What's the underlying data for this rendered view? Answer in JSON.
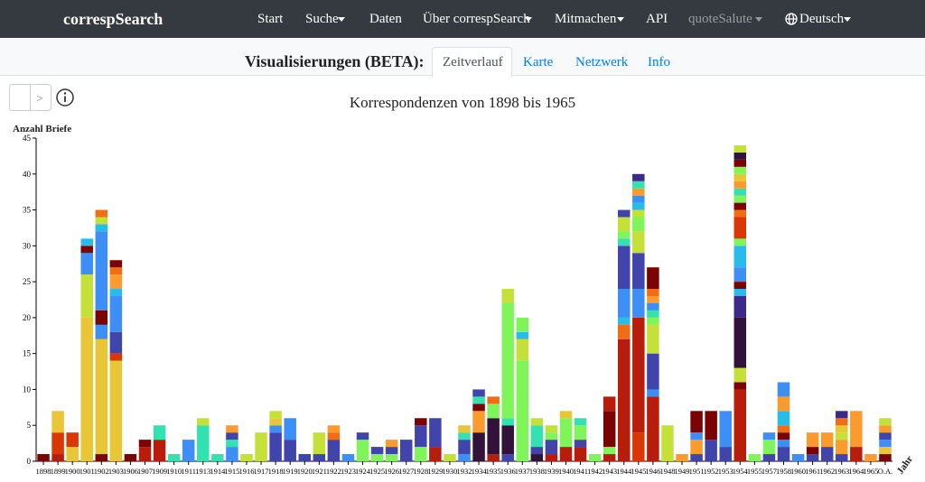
{
  "navbar": {
    "brand": "correspSearch",
    "items": [
      "Start",
      "Suche",
      "Daten",
      "Über correspSearch",
      "Mitmachen",
      "API",
      "quoteSalute",
      "Deutsch"
    ]
  },
  "subnav": {
    "heading": "Visualisierungen (BETA):",
    "tabs": [
      "Zeitverlauf",
      "Karte",
      "Netzwerk",
      "Info"
    ]
  },
  "controls": {
    "next": ">"
  },
  "chart_data": {
    "type": "stacked-bar",
    "title": "Korrespondenzen von 1898 bis 1965",
    "y_label": "Anzahl Briefe",
    "x_label": "Jahr",
    "ylim": [
      0,
      45
    ],
    "yticks": [
      0,
      5,
      10,
      15,
      20,
      25,
      30,
      35,
      40,
      45
    ],
    "categories": [
      "1898",
      "1899",
      "1900",
      "1901",
      "1902",
      "1903",
      "1906",
      "1907",
      "1909",
      "1910",
      "1911",
      "1913",
      "1914",
      "1915",
      "1916",
      "1917",
      "1918",
      "1919",
      "1920",
      "1921",
      "1922",
      "1923",
      "1924",
      "1925",
      "1926",
      "1927",
      "1928",
      "1929",
      "1930",
      "1932",
      "1934",
      "1935",
      "1936",
      "1937",
      "1938",
      "1939",
      "1940",
      "1941",
      "1942",
      "1943",
      "1944",
      "1945",
      "1946",
      "1948",
      "1949",
      "1951",
      "1952",
      "1953",
      "1954",
      "1955",
      "1957",
      "1958",
      "1960",
      "1961",
      "1962",
      "1963",
      "1964",
      "1965",
      "O.A."
    ],
    "stacks": [
      [
        {
          "value": 1,
          "color": "#7a0403"
        }
      ],
      [
        {
          "value": 1,
          "color": "#b81d0c"
        },
        {
          "value": 3,
          "color": "#d93806"
        },
        {
          "value": 3,
          "color": "#e8c635"
        }
      ],
      [
        {
          "value": 2,
          "color": "#e8c635"
        },
        {
          "value": 2,
          "color": "#d93806"
        }
      ],
      [
        {
          "value": 20,
          "color": "#e8c635"
        },
        {
          "value": 6,
          "color": "#c6e03a"
        },
        {
          "value": 3,
          "color": "#3e8ff5"
        },
        {
          "value": 1,
          "color": "#7a0403"
        },
        {
          "value": 1,
          "color": "#28bceb"
        }
      ],
      [
        {
          "value": 1,
          "color": "#7a0403"
        },
        {
          "value": 16,
          "color": "#e8c635"
        },
        {
          "value": 2,
          "color": "#3e8ff5"
        },
        {
          "value": 2,
          "color": "#7a0403"
        },
        {
          "value": 11,
          "color": "#3e8ff5"
        },
        {
          "value": 1,
          "color": "#28bceb"
        },
        {
          "value": 1,
          "color": "#c6e03a"
        },
        {
          "value": 1,
          "color": "#f26b15"
        }
      ],
      [
        {
          "value": 14,
          "color": "#e8c635"
        },
        {
          "value": 1,
          "color": "#d93806"
        },
        {
          "value": 3,
          "color": "#4145ab"
        },
        {
          "value": 5,
          "color": "#3e8ff5"
        },
        {
          "value": 1,
          "color": "#28bceb"
        },
        {
          "value": 2,
          "color": "#fb9b2e"
        },
        {
          "value": 1,
          "color": "#f26b15"
        },
        {
          "value": 1,
          "color": "#7a0403"
        }
      ],
      [
        {
          "value": 1,
          "color": "#7a0403"
        }
      ],
      [
        {
          "value": 2,
          "color": "#b81d0c"
        },
        {
          "value": 1,
          "color": "#7a0403"
        }
      ],
      [
        {
          "value": 3,
          "color": "#b81d0c"
        },
        {
          "value": 2,
          "color": "#35e1b0"
        }
      ],
      [
        {
          "value": 1,
          "color": "#35e1b0"
        }
      ],
      [
        {
          "value": 3,
          "color": "#3e8ff5"
        }
      ],
      [
        {
          "value": 5,
          "color": "#35e1b0"
        },
        {
          "value": 1,
          "color": "#c6e03a"
        }
      ],
      [
        {
          "value": 1,
          "color": "#35e1b0"
        }
      ],
      [
        {
          "value": 2,
          "color": "#3e8ff5"
        },
        {
          "value": 1,
          "color": "#35e1b0"
        },
        {
          "value": 1,
          "color": "#4145ab"
        },
        {
          "value": 1,
          "color": "#fb9b2e"
        }
      ],
      [
        {
          "value": 1,
          "color": "#c6e03a"
        }
      ],
      [
        {
          "value": 4,
          "color": "#c6e03a"
        }
      ],
      [
        {
          "value": 4,
          "color": "#4145ab"
        },
        {
          "value": 1,
          "color": "#3e8ff5"
        },
        {
          "value": 1,
          "color": "#e8c635"
        },
        {
          "value": 1,
          "color": "#c6e03a"
        }
      ],
      [
        {
          "value": 3,
          "color": "#4145ab"
        },
        {
          "value": 3,
          "color": "#3e8ff5"
        }
      ],
      [
        {
          "value": 1,
          "color": "#4145ab"
        }
      ],
      [
        {
          "value": 1,
          "color": "#4145ab"
        },
        {
          "value": 3,
          "color": "#c6e03a"
        }
      ],
      [
        {
          "value": 3,
          "color": "#4145ab"
        },
        {
          "value": 1,
          "color": "#f26b15"
        },
        {
          "value": 1,
          "color": "#fb9b2e"
        }
      ],
      [
        {
          "value": 1,
          "color": "#3e8ff5"
        }
      ],
      [
        {
          "value": 3,
          "color": "#80f55a"
        },
        {
          "value": 1,
          "color": "#4145ab"
        }
      ],
      [
        {
          "value": 1,
          "color": "#80f55a"
        },
        {
          "value": 1,
          "color": "#4145ab"
        }
      ],
      [
        {
          "value": 1,
          "color": "#80f55a"
        },
        {
          "value": 1,
          "color": "#4145ab"
        },
        {
          "value": 1,
          "color": "#fb9b2e"
        }
      ],
      [
        {
          "value": 3,
          "color": "#4145ab"
        }
      ],
      [
        {
          "value": 2,
          "color": "#80f55a"
        },
        {
          "value": 3,
          "color": "#4145ab"
        },
        {
          "value": 1,
          "color": "#7a0403"
        }
      ],
      [
        {
          "value": 2,
          "color": "#b81d0c"
        },
        {
          "value": 4,
          "color": "#4145ab"
        }
      ],
      [
        {
          "value": 1,
          "color": "#c6e03a"
        }
      ],
      [
        {
          "value": 1,
          "color": "#3e8ff5"
        },
        {
          "value": 2,
          "color": "#4145ab"
        },
        {
          "value": 1,
          "color": "#35e1b0"
        },
        {
          "value": 1,
          "color": "#e8c635"
        }
      ],
      [
        {
          "value": 4,
          "color": "#30123b"
        },
        {
          "value": 3,
          "color": "#fb9b2e"
        },
        {
          "value": 1,
          "color": "#7a0403"
        },
        {
          "value": 1,
          "color": "#35e1b0"
        },
        {
          "value": 1,
          "color": "#4145ab"
        }
      ],
      [
        {
          "value": 1,
          "color": "#b81d0c"
        },
        {
          "value": 5,
          "color": "#30123b"
        },
        {
          "value": 2,
          "color": "#80f55a"
        },
        {
          "value": 1,
          "color": "#f26b15"
        }
      ],
      [
        {
          "value": 1,
          "color": "#4145ab"
        },
        {
          "value": 4,
          "color": "#30123b"
        },
        {
          "value": 1,
          "color": "#35e1b0"
        },
        {
          "value": 16,
          "color": "#80f55a"
        },
        {
          "value": 2,
          "color": "#c6e03a"
        }
      ],
      [
        {
          "value": 14,
          "color": "#80f55a"
        },
        {
          "value": 3,
          "color": "#c6e03a"
        },
        {
          "value": 1,
          "color": "#28bceb"
        },
        {
          "value": 2,
          "color": "#80f55a"
        }
      ],
      [
        {
          "value": 1,
          "color": "#30123b"
        },
        {
          "value": 1,
          "color": "#4145ab"
        },
        {
          "value": 3,
          "color": "#35e1b0"
        },
        {
          "value": 1,
          "color": "#c6e03a"
        }
      ],
      [
        {
          "value": 1,
          "color": "#b81d0c"
        },
        {
          "value": 2,
          "color": "#4145ab"
        },
        {
          "value": 1,
          "color": "#80f55a"
        },
        {
          "value": 1,
          "color": "#c6e03a"
        }
      ],
      [
        {
          "value": 2,
          "color": "#b81d0c"
        },
        {
          "value": 4,
          "color": "#80f55a"
        },
        {
          "value": 1,
          "color": "#e8c635"
        }
      ],
      [
        {
          "value": 2,
          "color": "#b81d0c"
        },
        {
          "value": 1,
          "color": "#4145ab"
        },
        {
          "value": 2,
          "color": "#80f55a"
        },
        {
          "value": 1,
          "color": "#35e1b0"
        }
      ],
      [
        {
          "value": 1,
          "color": "#80f55a"
        }
      ],
      [
        {
          "value": 1,
          "color": "#b81d0c"
        },
        {
          "value": 1,
          "color": "#80f55a"
        },
        {
          "value": 5,
          "color": "#7a0403"
        },
        {
          "value": 2,
          "color": "#b81d0c"
        }
      ],
      [
        {
          "value": 17,
          "color": "#b81d0c"
        },
        {
          "value": 2,
          "color": "#f26b15"
        },
        {
          "value": 1,
          "color": "#28bceb"
        },
        {
          "value": 4,
          "color": "#3e8ff5"
        },
        {
          "value": 6,
          "color": "#4145ab"
        },
        {
          "value": 1,
          "color": "#35e1b0"
        },
        {
          "value": 1,
          "color": "#80f55a"
        },
        {
          "value": 2,
          "color": "#c6e03a"
        },
        {
          "value": 1,
          "color": "#4145ab"
        }
      ],
      [
        {
          "value": 4,
          "color": "#d93806"
        },
        {
          "value": 16,
          "color": "#b81d0c"
        },
        {
          "value": 4,
          "color": "#3e8ff5"
        },
        {
          "value": 5,
          "color": "#4145ab"
        },
        {
          "value": 3,
          "color": "#c6e03a"
        },
        {
          "value": 2,
          "color": "#80f55a"
        },
        {
          "value": 1,
          "color": "#c6e03a"
        },
        {
          "value": 1,
          "color": "#28bceb"
        },
        {
          "value": 1,
          "color": "#3e8ff5"
        },
        {
          "value": 1,
          "color": "#fb9b2e"
        },
        {
          "value": 1,
          "color": "#35e1b0"
        },
        {
          "value": 1,
          "color": "#3b2a8a"
        }
      ],
      [
        {
          "value": 9,
          "color": "#b81d0c"
        },
        {
          "value": 1,
          "color": "#3e8ff5"
        },
        {
          "value": 5,
          "color": "#4145ab"
        },
        {
          "value": 4,
          "color": "#c6e03a"
        },
        {
          "value": 1,
          "color": "#80f55a"
        },
        {
          "value": 1,
          "color": "#35e1b0"
        },
        {
          "value": 1,
          "color": "#3e8ff5"
        },
        {
          "value": 1,
          "color": "#fb9b2e"
        },
        {
          "value": 1,
          "color": "#f26b15"
        },
        {
          "value": 3,
          "color": "#7a0403"
        }
      ],
      [
        {
          "value": 5,
          "color": "#c6e03a"
        }
      ],
      [
        {
          "value": 1,
          "color": "#fb9b2e"
        }
      ],
      [
        {
          "value": 1,
          "color": "#4145ab"
        },
        {
          "value": 2,
          "color": "#fb9b2e"
        },
        {
          "value": 1,
          "color": "#3e8ff5"
        },
        {
          "value": 3,
          "color": "#7a0403"
        }
      ],
      [
        {
          "value": 3,
          "color": "#4145ab"
        },
        {
          "value": 4,
          "color": "#7a0403"
        }
      ],
      [
        {
          "value": 2,
          "color": "#4145ab"
        },
        {
          "value": 5,
          "color": "#3e8ff5"
        }
      ],
      [
        {
          "value": 10,
          "color": "#b81d0c"
        },
        {
          "value": 1,
          "color": "#7a0403"
        },
        {
          "value": 2,
          "color": "#c6e03a"
        },
        {
          "value": 7,
          "color": "#30123b"
        },
        {
          "value": 3,
          "color": "#3b2a8a"
        },
        {
          "value": 1,
          "color": "#28bceb"
        },
        {
          "value": 1,
          "color": "#7a0403"
        },
        {
          "value": 2,
          "color": "#3e8ff5"
        },
        {
          "value": 3,
          "color": "#28bceb"
        },
        {
          "value": 1,
          "color": "#80f55a"
        },
        {
          "value": 3,
          "color": "#d93806"
        },
        {
          "value": 1,
          "color": "#f26b15"
        },
        {
          "value": 1,
          "color": "#7a0403"
        },
        {
          "value": 1,
          "color": "#80f55a"
        },
        {
          "value": 1,
          "color": "#35e1b0"
        },
        {
          "value": 1,
          "color": "#fb9b2e"
        },
        {
          "value": 1,
          "color": "#e8c635"
        },
        {
          "value": 1,
          "color": "#80f55a"
        },
        {
          "value": 1,
          "color": "#7a0403"
        },
        {
          "value": 1,
          "color": "#30123b"
        },
        {
          "value": 1,
          "color": "#c6e03a"
        }
      ],
      [
        {
          "value": 1,
          "color": "#80f55a"
        }
      ],
      [
        {
          "value": 1,
          "color": "#4145ab"
        },
        {
          "value": 2,
          "color": "#80f55a"
        },
        {
          "value": 1,
          "color": "#3e8ff5"
        }
      ],
      [
        {
          "value": 2,
          "color": "#4145ab"
        },
        {
          "value": 1,
          "color": "#3e8ff5"
        },
        {
          "value": 1,
          "color": "#7a0403"
        },
        {
          "value": 1,
          "color": "#f26b15"
        },
        {
          "value": 2,
          "color": "#28bceb"
        },
        {
          "value": 2,
          "color": "#fb9b2e"
        },
        {
          "value": 2,
          "color": "#3e8ff5"
        }
      ],
      [
        {
          "value": 1,
          "color": "#3e8ff5"
        }
      ],
      [
        {
          "value": 1,
          "color": "#4145ab"
        },
        {
          "value": 1,
          "color": "#7a0403"
        },
        {
          "value": 2,
          "color": "#fb9b2e"
        }
      ],
      [
        {
          "value": 2,
          "color": "#4145ab"
        },
        {
          "value": 2,
          "color": "#fb9b2e"
        }
      ],
      [
        {
          "value": 1,
          "color": "#4145ab"
        },
        {
          "value": 2,
          "color": "#fb9b2e"
        },
        {
          "value": 1,
          "color": "#c6e03a"
        },
        {
          "value": 1,
          "color": "#e8c635"
        },
        {
          "value": 1,
          "color": "#f26b15"
        },
        {
          "value": 1,
          "color": "#3b2a8a"
        }
      ],
      [
        {
          "value": 2,
          "color": "#b81d0c"
        },
        {
          "value": 5,
          "color": "#fb9b2e"
        }
      ],
      [
        {
          "value": 1,
          "color": "#fb9b2e"
        }
      ],
      [
        {
          "value": 1,
          "color": "#7a0403"
        },
        {
          "value": 1,
          "color": "#e8c635"
        },
        {
          "value": 1,
          "color": "#3e8ff5"
        },
        {
          "value": 1,
          "color": "#4145ab"
        },
        {
          "value": 1,
          "color": "#fb9b2e"
        },
        {
          "value": 1,
          "color": "#c6e03a"
        }
      ]
    ]
  }
}
